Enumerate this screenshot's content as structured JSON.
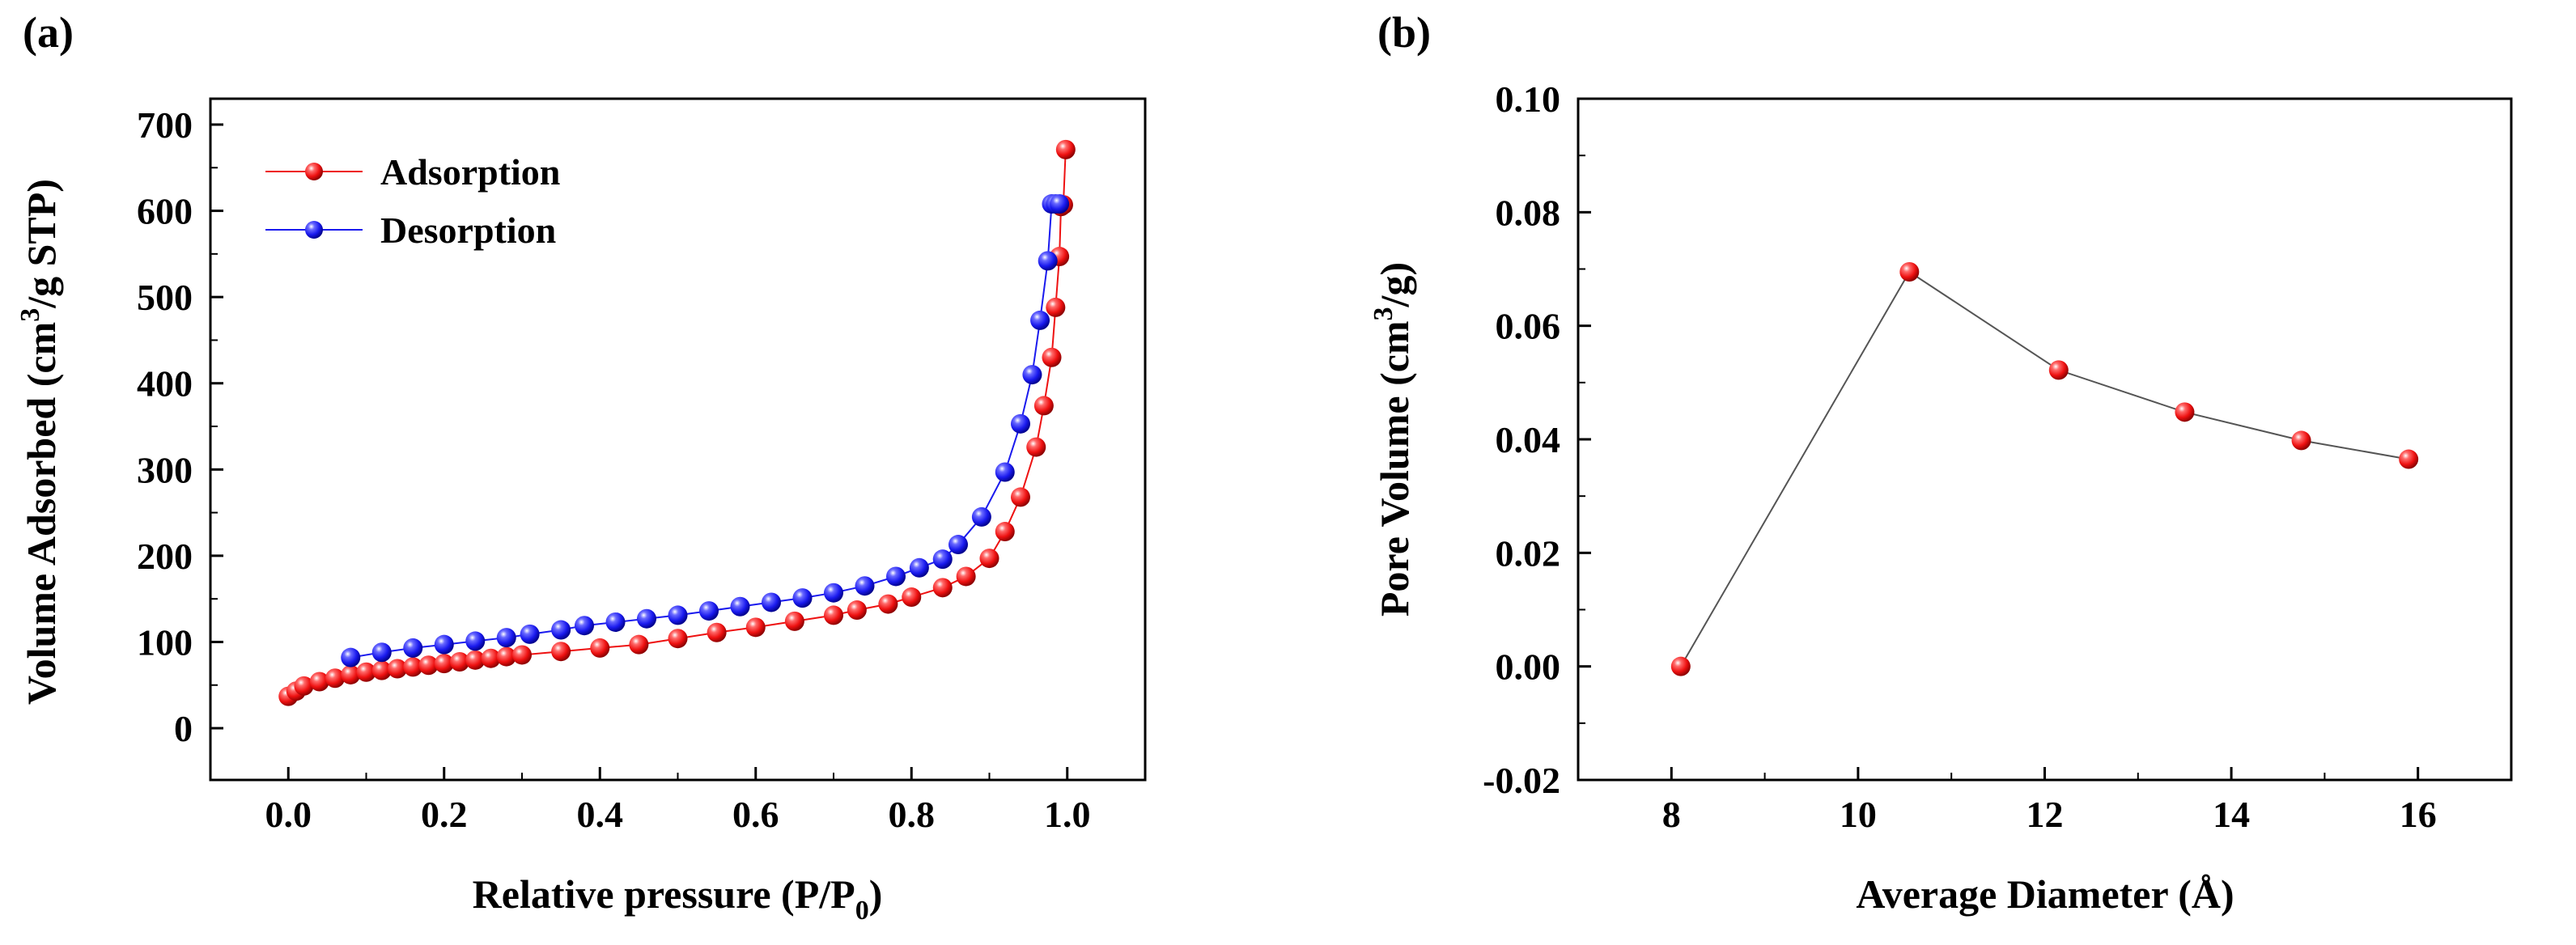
{
  "colors": {
    "adsorption": "#ee1111",
    "desorption": "#1a1aee",
    "pore_line": "#555555",
    "axis": "#000000"
  },
  "chart_data": [
    {
      "panel_label": "(a)",
      "type": "line",
      "xlabel": "Relative pressure (P/P",
      "xlabel_sub": "0",
      "xlabel_end": ")",
      "ylabel_pre": "Volume Adsorbed (cm",
      "ylabel_sup": "3",
      "ylabel_post": "/g STP)",
      "xlim": [
        -0.1,
        1.1
      ],
      "ylim": [
        -60,
        730
      ],
      "xticks": [
        0.0,
        0.2,
        0.4,
        0.6,
        0.8,
        1.0
      ],
      "xtick_labels": [
        "0.0",
        "0.2",
        "0.4",
        "0.6",
        "0.8",
        "1.0"
      ],
      "yticks": [
        0,
        100,
        200,
        300,
        400,
        500,
        600,
        700
      ],
      "ytick_labels": [
        "0",
        "100",
        "200",
        "300",
        "400",
        "500",
        "600",
        "700"
      ],
      "legend": {
        "position": "top-left",
        "entries": [
          "Adsorption",
          "Desorption"
        ]
      },
      "series": [
        {
          "name": "Adsorption",
          "color": "adsorption",
          "x": [
            0.0,
            0.01,
            0.02,
            0.04,
            0.06,
            0.08,
            0.1,
            0.12,
            0.14,
            0.16,
            0.18,
            0.2,
            0.22,
            0.24,
            0.26,
            0.28,
            0.3,
            0.35,
            0.4,
            0.45,
            0.5,
            0.55,
            0.6,
            0.65,
            0.7,
            0.73,
            0.77,
            0.8,
            0.84,
            0.87,
            0.9,
            0.92,
            0.94,
            0.96,
            0.97,
            0.98,
            0.985,
            0.99,
            0.992,
            0.995,
            0.998
          ],
          "y": [
            37,
            43,
            49,
            54,
            58,
            62,
            65,
            67,
            69,
            71,
            73,
            75,
            77,
            79,
            81,
            83,
            85,
            89,
            93,
            97,
            104,
            111,
            117,
            124,
            131,
            137,
            144,
            152,
            163,
            176,
            197,
            228,
            268,
            326,
            374,
            430,
            488,
            547,
            605,
            607,
            671
          ]
        },
        {
          "name": "Desorption",
          "color": "desorption",
          "x": [
            0.08,
            0.12,
            0.16,
            0.2,
            0.24,
            0.28,
            0.31,
            0.35,
            0.38,
            0.42,
            0.46,
            0.5,
            0.54,
            0.58,
            0.62,
            0.66,
            0.7,
            0.74,
            0.78,
            0.81,
            0.84,
            0.86,
            0.89,
            0.92,
            0.94,
            0.955,
            0.965,
            0.975,
            0.98,
            0.985,
            0.99
          ],
          "y": [
            82,
            88,
            93,
            97,
            101,
            105,
            109,
            114,
            119,
            123,
            127,
            131,
            136,
            141,
            146,
            151,
            157,
            165,
            176,
            186,
            196,
            213,
            245,
            297,
            353,
            410,
            473,
            542,
            608,
            608,
            608
          ]
        }
      ]
    },
    {
      "panel_label": "(b)",
      "type": "line",
      "xlabel": "Average Diameter (Å)",
      "ylabel_pre": "Pore Volume (cm",
      "ylabel_sup": "3",
      "ylabel_post": "/g)",
      "xlim": [
        7.0,
        17.0
      ],
      "ylim": [
        -0.02,
        0.1
      ],
      "xticks": [
        8,
        10,
        12,
        14,
        16
      ],
      "xtick_labels": [
        "8",
        "10",
        "12",
        "14",
        "16"
      ],
      "yticks": [
        -0.02,
        0.0,
        0.02,
        0.04,
        0.06,
        0.08,
        0.1
      ],
      "ytick_labels": [
        "-0.02",
        "0.00",
        "0.02",
        "0.04",
        "0.06",
        "0.08",
        "0.10"
      ],
      "series": [
        {
          "name": "Pore Volume",
          "color": "adsorption",
          "line_color": "pore_line",
          "x": [
            8.1,
            10.55,
            12.15,
            13.5,
            14.75,
            15.9
          ],
          "y": [
            0.0,
            0.0695,
            0.0522,
            0.0448,
            0.0398,
            0.0365
          ]
        }
      ]
    }
  ]
}
